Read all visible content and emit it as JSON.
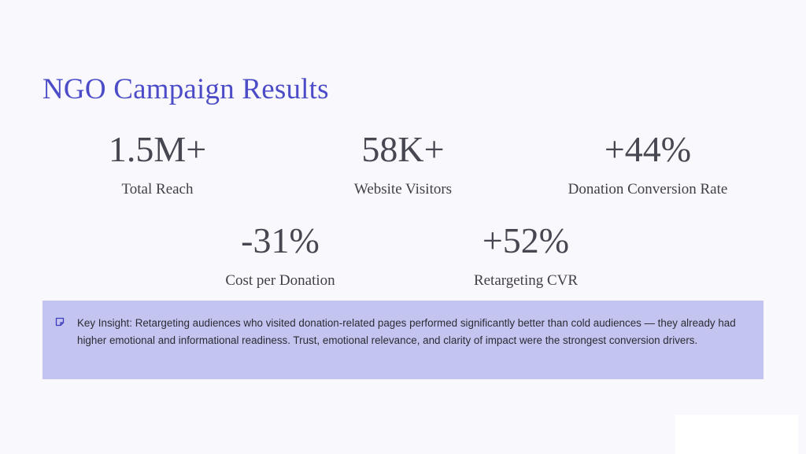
{
  "slide": {
    "title": "NGO Campaign Results",
    "stats": [
      {
        "value": "1.5M+",
        "label": "Total Reach"
      },
      {
        "value": "58K+",
        "label": "Website Visitors"
      },
      {
        "value": "+44%",
        "label": "Donation Conversion Rate"
      },
      {
        "value": "-31%",
        "label": "Cost per Donation"
      },
      {
        "value": "+52%",
        "label": "Retargeting CVR"
      }
    ],
    "insight": {
      "icon": "note-icon",
      "text": "Key Insight: Retargeting audiences who visited donation-related pages performed significantly better than cold audiences — they already had higher emotional and informational readiness. Trust, emotional relevance, and clarity of impact were the strongest conversion drivers."
    }
  },
  "colors": {
    "background": "#f9f8fc",
    "title": "#4c4cc8",
    "stat_text": "#474752",
    "insight_background": "#c3c4ef",
    "icon": "#3d3dbf"
  }
}
